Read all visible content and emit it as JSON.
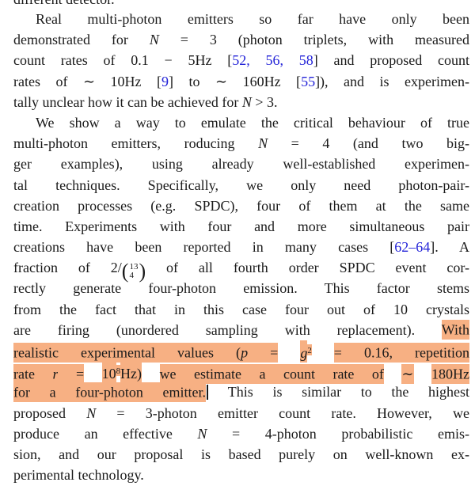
{
  "page": {
    "background": "#ffffff",
    "ink_color": "#1a1a1a",
    "cite_color": "#2424d8",
    "highlight_color": "#f7b083"
  },
  "document": {
    "clipped_top_line": "different detector.",
    "lines": [
      {
        "ind": true,
        "segments": [
          {
            "t": "Real multi-photon emitters so far have only been"
          }
        ]
      },
      {
        "segments": [
          {
            "t": "demonstrated for "
          },
          {
            "t": "N",
            "c": "i"
          },
          {
            "t": " = 3 (photon triplets, with measured"
          }
        ]
      },
      {
        "segments": [
          {
            "t": "count rates of 0.1 − 5Hz ["
          },
          {
            "t": "52, 56, 58",
            "c": "cite"
          },
          {
            "t": "] and proposed count"
          }
        ]
      },
      {
        "segments": [
          {
            "t": "rates of ∼ 10Hz ["
          },
          {
            "t": "9",
            "c": "cite"
          },
          {
            "t": "] to ∼ 160Hz ["
          },
          {
            "t": "55",
            "c": "cite"
          },
          {
            "t": "]), and is experimen-"
          }
        ]
      },
      {
        "lastline": true,
        "segments": [
          {
            "t": "tally unclear how it can be achieved for "
          },
          {
            "t": "N",
            "c": "i"
          },
          {
            "t": " > 3."
          }
        ]
      },
      {
        "ind": true,
        "segments": [
          {
            "t": "We show a way to emulate the critical behaviour of true"
          }
        ]
      },
      {
        "segments": [
          {
            "t": "multi-photon emitters, roducing "
          },
          {
            "t": "N",
            "c": "i"
          },
          {
            "t": " = 4 (and two big-"
          }
        ]
      },
      {
        "segments": [
          {
            "t": "ger examples), using already well-established experimen-"
          }
        ]
      },
      {
        "segments": [
          {
            "t": "tal techniques.  Specifically, we only need photon-pair-"
          }
        ]
      },
      {
        "segments": [
          {
            "t": "creation processes (e.g. SPDC), four of them at the same"
          }
        ]
      },
      {
        "segments": [
          {
            "t": "time. Experiments with four and more simultaneous pair"
          }
        ]
      },
      {
        "segments": [
          {
            "t": "creations have been reported in many cases ["
          },
          {
            "t": "62–64",
            "c": "cite"
          },
          {
            "t": "]. A"
          }
        ]
      },
      {
        "segments": [
          {
            "t": "fraction of 2/"
          },
          {
            "type": "binom",
            "top": "13",
            "bottom": "4",
            "open": "(",
            "close": ")"
          },
          {
            "t": " of all fourth order SPDC event cor-"
          }
        ]
      },
      {
        "segments": [
          {
            "t": "rectly generate four-photon emission.  This factor stems"
          }
        ]
      },
      {
        "segments": [
          {
            "t": "from the fact that in this case four out of 10 crystals"
          }
        ]
      },
      {
        "segments": [
          {
            "t": "are firing (unordered sampling with replacement). "
          },
          {
            "t": "With",
            "c": "hl"
          }
        ]
      },
      {
        "segments": [
          {
            "t": "realistic experimental values (",
            "c": "hl"
          },
          {
            "t": "p",
            "c": "hl i"
          },
          {
            "t": " =",
            "c": "hl"
          },
          {
            "t": " "
          },
          {
            "t": "g",
            "c": "hl2 i"
          },
          {
            "t": "2",
            "c": "hl2 sup"
          },
          {
            "t": " "
          },
          {
            "t": "= 0.16, repetition",
            "c": "hl"
          }
        ]
      },
      {
        "segments": [
          {
            "t": "rate ",
            "c": "hl"
          },
          {
            "t": "r",
            "c": "hl i"
          },
          {
            "t": " =",
            "c": "hl"
          },
          {
            "t": " "
          },
          {
            "t": "10",
            "c": "hl2"
          },
          {
            "t": "8",
            "c": "hl2 sup"
          },
          {
            "t": "Hz)",
            "c": "hl2"
          },
          {
            "t": " "
          },
          {
            "t": "we estimate a count rate of",
            "c": "hl"
          },
          {
            "t": " "
          },
          {
            "t": "∼",
            "c": "hl"
          },
          {
            "t": " "
          },
          {
            "t": "180Hz",
            "c": "hl"
          }
        ]
      },
      {
        "segments": [
          {
            "t": "for a four-photon emitter.",
            "c": "hl"
          },
          {
            "type": "cursor"
          },
          {
            "t": " This is similar to the highest"
          }
        ]
      },
      {
        "segments": [
          {
            "t": "proposed "
          },
          {
            "t": "N",
            "c": "i"
          },
          {
            "t": " = 3-photon emitter count rate. However, we"
          }
        ]
      },
      {
        "segments": [
          {
            "t": "produce an effective "
          },
          {
            "t": "N",
            "c": "i"
          },
          {
            "t": " = 4-photon probabilistic emis-"
          }
        ]
      },
      {
        "segments": [
          {
            "t": "sion, and our proposal is based purely on well-known ex-"
          }
        ]
      },
      {
        "lastline": true,
        "segments": [
          {
            "t": "perimental technology."
          }
        ]
      }
    ]
  }
}
